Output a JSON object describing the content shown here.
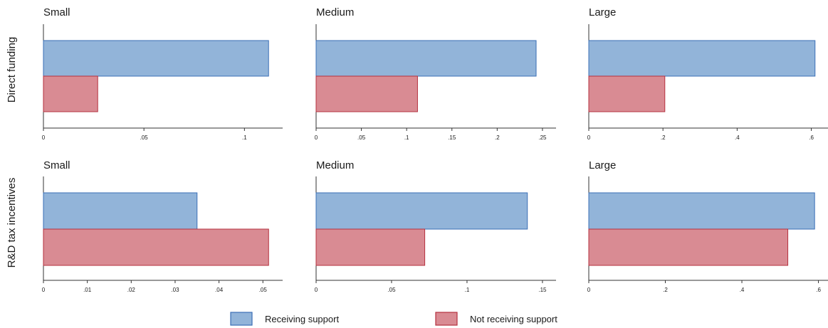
{
  "chart_data": {
    "type": "bar",
    "orientation": "horizontal",
    "legend": {
      "placement": "bottom",
      "items": [
        {
          "name": "Receiving support",
          "color": "#92b4d9",
          "stroke": "#3b6fb6"
        },
        {
          "name": "Not receiving support",
          "color": "#d98b93",
          "stroke": "#b5313f"
        }
      ]
    },
    "rows": [
      {
        "label": "Direct funding",
        "panels": [
          {
            "title": "Small",
            "xlim": [
              0,
              0.119
            ],
            "ticks": [
              0,
              0.05,
              0.1
            ],
            "tick_labels": [
              "0",
              ".05",
              ".1"
            ],
            "series": [
              {
                "name": "Receiving support",
                "value": 0.112
              },
              {
                "name": "Not receiving support",
                "value": 0.027
              }
            ]
          },
          {
            "title": "Medium",
            "xlim": [
              0,
              0.265
            ],
            "ticks": [
              0,
              0.05,
              0.1,
              0.15,
              0.2,
              0.25
            ],
            "tick_labels": [
              "0",
              ".05",
              ".1",
              ".15",
              ".2",
              ".25"
            ],
            "series": [
              {
                "name": "Receiving support",
                "value": 0.243
              },
              {
                "name": "Not receiving support",
                "value": 0.112
              }
            ]
          },
          {
            "title": "Large",
            "xlim": [
              0,
              0.645
            ],
            "ticks": [
              0,
              0.2,
              0.4,
              0.6
            ],
            "tick_labels": [
              "0",
              ".2",
              ".4",
              ".6"
            ],
            "series": [
              {
                "name": "Receiving support",
                "value": 0.61
              },
              {
                "name": "Not receiving support",
                "value": 0.205
              }
            ]
          }
        ]
      },
      {
        "label": "R&D tax incentives",
        "panels": [
          {
            "title": "Small",
            "xlim": [
              0,
              0.0545
            ],
            "ticks": [
              0,
              0.01,
              0.02,
              0.03,
              0.04,
              0.05
            ],
            "tick_labels": [
              "0",
              ".01",
              ".02",
              ".03",
              ".04",
              ".05"
            ],
            "series": [
              {
                "name": "Receiving support",
                "value": 0.035
              },
              {
                "name": "Not receiving support",
                "value": 0.0513
              }
            ]
          },
          {
            "title": "Medium",
            "xlim": [
              0,
              0.159
            ],
            "ticks": [
              0,
              0.05,
              0.1,
              0.15
            ],
            "tick_labels": [
              "0",
              ".05",
              ".1",
              ".15"
            ],
            "series": [
              {
                "name": "Receiving support",
                "value": 0.14
              },
              {
                "name": "Not receiving support",
                "value": 0.072
              }
            ]
          },
          {
            "title": "Large",
            "xlim": [
              0,
              0.625
            ],
            "ticks": [
              0,
              0.2,
              0.4,
              0.6
            ],
            "tick_labels": [
              "0",
              ".2",
              ".4",
              ".6"
            ],
            "series": [
              {
                "name": "Receiving support",
                "value": 0.59
              },
              {
                "name": "Not receiving support",
                "value": 0.52
              }
            ]
          }
        ]
      }
    ]
  }
}
